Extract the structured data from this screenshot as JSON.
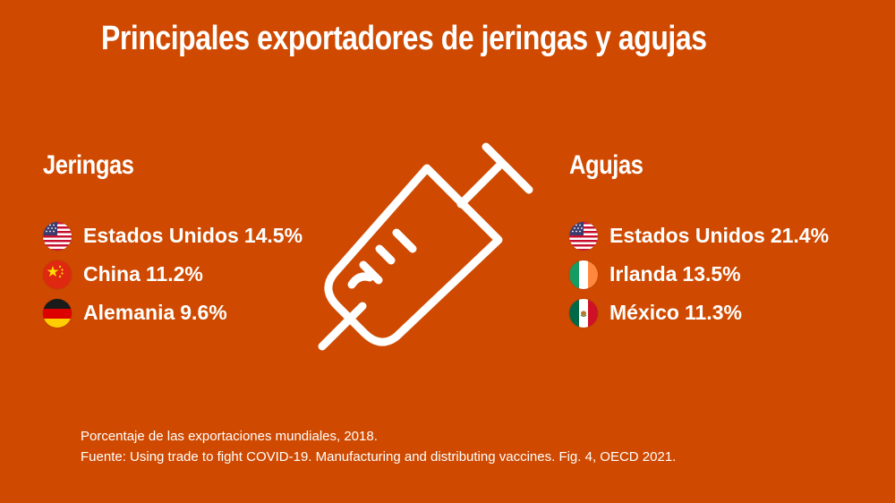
{
  "title": "Principales exportadores de jeringas y agujas",
  "jeringas": {
    "heading": "Jeringas",
    "items": [
      {
        "country": "Estados Unidos",
        "value": "14.5%",
        "flag": "us-flag-icon"
      },
      {
        "country": "China",
        "value": "11.2%",
        "flag": "china-flag-icon"
      },
      {
        "country": "Alemania",
        "value": "9.6%",
        "flag": "germany-flag-icon"
      }
    ]
  },
  "agujas": {
    "heading": "Agujas",
    "items": [
      {
        "country": "Estados Unidos",
        "value": "21.4%",
        "flag": "us-flag-icon"
      },
      {
        "country": "Irlanda",
        "value": "13.5%",
        "flag": "ireland-flag-icon"
      },
      {
        "country": "México",
        "value": "11.3%",
        "flag": "mexico-flag-icon"
      }
    ]
  },
  "footer": {
    "note": "Porcentaje de las exportaciones mundiales, 2018.",
    "source": "Fuente: Using trade to fight COVID-19. Manufacturing and distributing vaccines. Fig. 4, OECD 2021."
  },
  "colors": {
    "background": "#cf4a00",
    "text": "#ffffff"
  },
  "icons": {
    "center": "syringe-icon"
  }
}
